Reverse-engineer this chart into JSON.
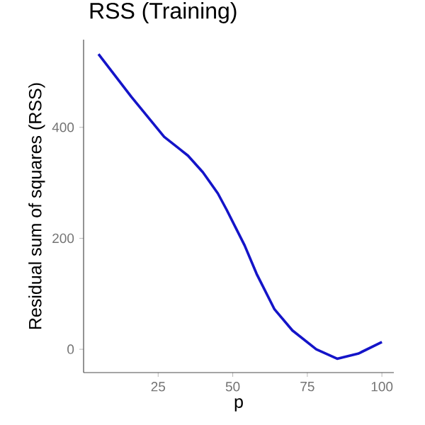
{
  "chart_data": {
    "type": "line",
    "title": "RSS (Training)",
    "xlabel": "p",
    "ylabel": "Residual sum of squares (RSS)",
    "x": [
      5,
      16,
      27,
      35,
      40,
      45,
      48,
      54,
      58,
      64,
      70,
      78,
      85,
      92,
      100
    ],
    "series": [
      {
        "color": "#1414c8",
        "values": [
          532,
          455,
          383,
          349,
          319,
          281,
          251,
          187,
          136,
          72,
          34,
          0,
          -17,
          -8,
          13
        ]
      }
    ],
    "xlim": [
      0,
      104
    ],
    "ylim": [
      -42,
      558
    ],
    "xticks": [
      25,
      50,
      75,
      100
    ],
    "yticks": [
      0,
      200,
      400
    ],
    "grid": false,
    "marker": "none",
    "line_style": "solid"
  }
}
